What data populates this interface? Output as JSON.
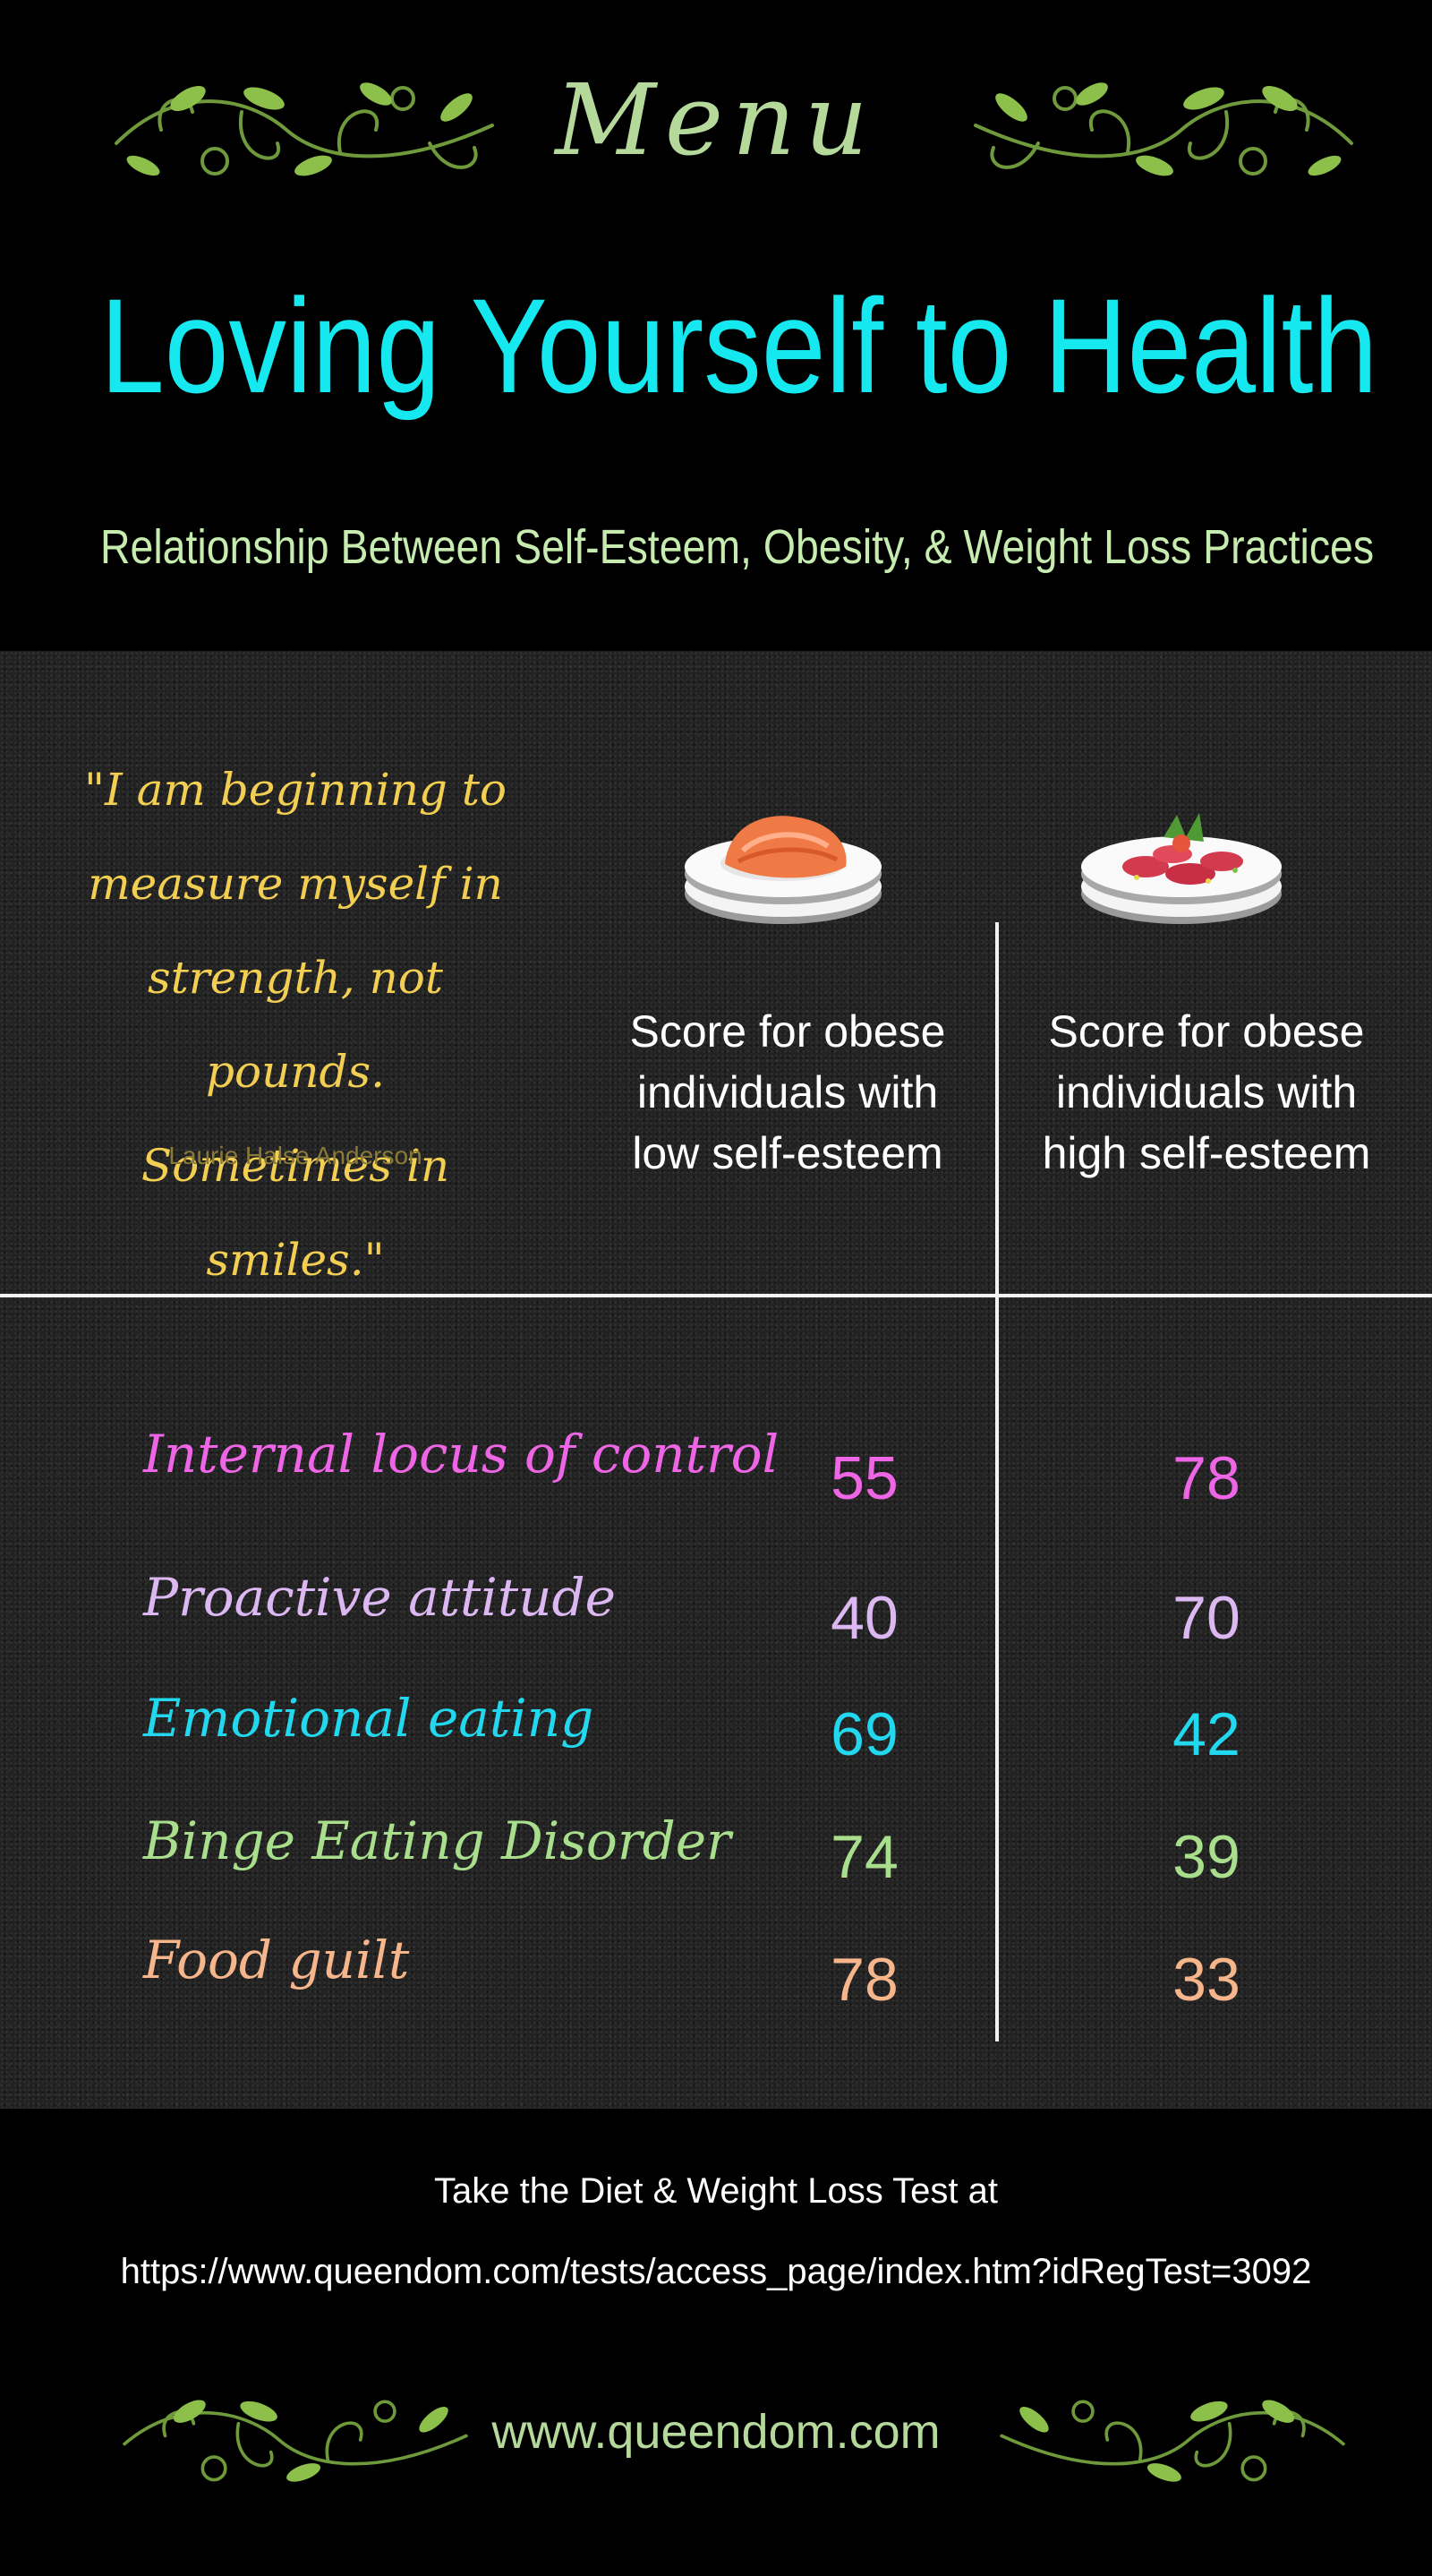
{
  "header": {
    "menu_word": "Menu",
    "title": "Loving Yourself to Health",
    "subtitle": "Relationship Between Self-Esteem, Obesity, & Weight Loss Practices"
  },
  "quote": {
    "lines": [
      "\"I am beginning to",
      "measure myself in",
      "strength, not pounds.",
      "Sometimes in smiles.\""
    ],
    "author": "Laurie Halse Anderson"
  },
  "columns": {
    "low": [
      "Score for obese",
      "individuals with",
      "low self-esteem"
    ],
    "high": [
      "Score for obese",
      "individuals with",
      "high self-esteem"
    ]
  },
  "rows": [
    {
      "label": "Internal locus of control",
      "low": "55",
      "high": "78",
      "color": "#ee66e6"
    },
    {
      "label": "Proactive attitude",
      "low": "40",
      "high": "70",
      "color": "#dcb8f2"
    },
    {
      "label": "Emotional eating",
      "low": "69",
      "high": "42",
      "color": "#22d8ee"
    },
    {
      "label": "Binge Eating Disorder",
      "low": "74",
      "high": "39",
      "color": "#a9df8c"
    },
    {
      "label": "Food guilt",
      "low": "78",
      "high": "33",
      "color": "#f6b58a"
    }
  ],
  "footer": {
    "cta": "Take the Diet & Weight Loss Test at",
    "url": "https://www.queendom.com/tests/access_page/index.htm?idRegTest=3092",
    "site": "www.queendom.com"
  },
  "colors": {
    "title": "#16e8f0",
    "menu": "#b5d99a",
    "quote": "#f2cf52"
  }
}
